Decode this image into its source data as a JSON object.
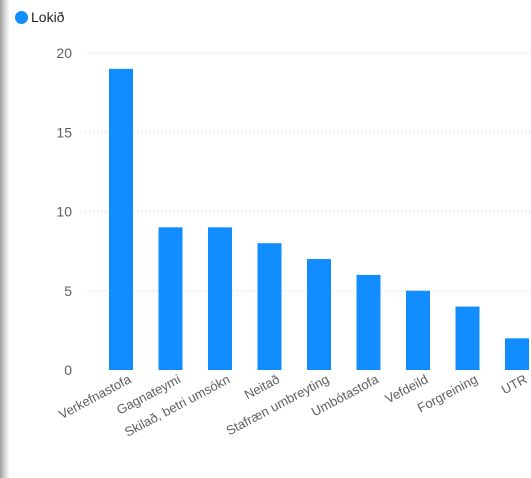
{
  "colors": {
    "series": "#118DFF",
    "text": "#605e5c"
  },
  "legend": {
    "label": "Lokið",
    "position": "top-left"
  },
  "chart_data": {
    "type": "bar",
    "title": "",
    "xlabel": "",
    "ylabel": "",
    "categories": [
      "Verkefnastofa",
      "Gagnateymi",
      "Skilað, betri umsókn",
      "Neitað",
      "Stafræn umbreyting",
      "Umbótastofa",
      "Vefdeild",
      "Forgreining",
      "UTR"
    ],
    "series": [
      {
        "name": "Lokið",
        "values": [
          19,
          9,
          9,
          8,
          7,
          6,
          5,
          4,
          2
        ]
      }
    ],
    "ylim": [
      0,
      20
    ],
    "yticks": [
      0,
      5,
      10,
      15,
      20
    ],
    "grid": true,
    "legend": "top-left"
  }
}
